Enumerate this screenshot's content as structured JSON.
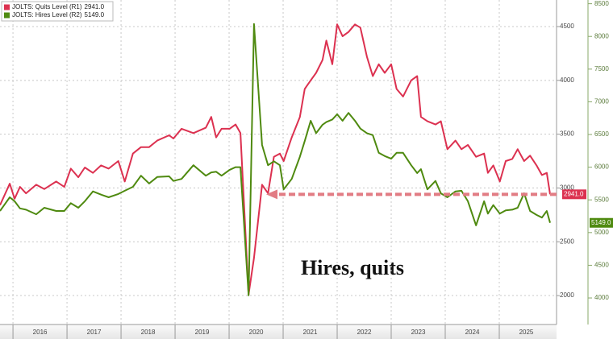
{
  "chart_data": {
    "type": "line",
    "annotation": "Hires, quits",
    "legend": "top-left",
    "grid": true,
    "x": [
      2015.76,
      2015.94,
      2016.03,
      2016.13,
      2016.24,
      2016.43,
      2016.58,
      2016.8,
      2016.95,
      2017.07,
      2017.21,
      2017.33,
      2017.48,
      2017.63,
      2017.77,
      2017.95,
      2018.07,
      2018.22,
      2018.37,
      2018.52,
      2018.67,
      2018.89,
      2018.97,
      2019.12,
      2019.34,
      2019.57,
      2019.67,
      2019.76,
      2019.86,
      2020.01,
      2020.12,
      2020.21,
      2020.36,
      2020.46,
      2020.61,
      2020.72,
      2020.83,
      2020.94,
      2021.01,
      2021.16,
      2021.31,
      2021.4,
      2021.51,
      2021.61,
      2021.73,
      2021.8,
      2021.91,
      2022.0,
      2022.1,
      2022.21,
      2022.33,
      2022.43,
      2022.55,
      2022.66,
      2022.77,
      2022.88,
      2023.0,
      2023.1,
      2023.22,
      2023.37,
      2023.48,
      2023.55,
      2023.67,
      2023.82,
      2023.92,
      2024.04,
      2024.19,
      2024.3,
      2024.42,
      2024.57,
      2024.72,
      2024.79,
      2024.89,
      2025.01,
      2025.12,
      2025.24,
      2025.34,
      2025.46,
      2025.57,
      2025.69,
      2025.79,
      2025.88,
      2025.94
    ],
    "series": [
      {
        "name": "JOLTS: Quits Level (R1)",
        "last_value_label": "2941.0",
        "color": "#dc3150",
        "axis": "y",
        "values": [
          2840,
          3040,
          2900,
          3010,
          2950,
          3030,
          2990,
          3060,
          3010,
          3180,
          3100,
          3190,
          3140,
          3210,
          3180,
          3250,
          3060,
          3320,
          3380,
          3380,
          3440,
          3490,
          3460,
          3550,
          3510,
          3560,
          3660,
          3470,
          3550,
          3550,
          3590,
          3510,
          2010,
          2350,
          3030,
          2950,
          3290,
          3320,
          3250,
          3470,
          3660,
          3920,
          4000,
          4070,
          4190,
          4370,
          4150,
          4520,
          4410,
          4450,
          4520,
          4490,
          4220,
          4040,
          4150,
          4070,
          4150,
          3920,
          3850,
          4000,
          4040,
          3660,
          3620,
          3590,
          3620,
          3360,
          3440,
          3360,
          3400,
          3290,
          3320,
          3140,
          3210,
          3060,
          3250,
          3270,
          3360,
          3250,
          3300,
          3210,
          3120,
          3140,
          2941
        ]
      },
      {
        "name": "JOLTS: Hires Level (R2)",
        "last_value_label": "5149.0",
        "color": "#4f8a10",
        "axis": "y2",
        "values": [
          5330,
          5540,
          5480,
          5370,
          5350,
          5280,
          5380,
          5330,
          5330,
          5450,
          5380,
          5480,
          5630,
          5580,
          5540,
          5590,
          5640,
          5700,
          5870,
          5750,
          5850,
          5860,
          5790,
          5820,
          6030,
          5870,
          5920,
          5930,
          5870,
          5960,
          6000,
          6000,
          4040,
          8190,
          6340,
          6030,
          6090,
          6030,
          5660,
          5820,
          6160,
          6400,
          6710,
          6520,
          6650,
          6690,
          6730,
          6810,
          6710,
          6830,
          6710,
          6590,
          6520,
          6490,
          6220,
          6170,
          6130,
          6220,
          6220,
          6030,
          5910,
          5970,
          5660,
          5790,
          5600,
          5540,
          5630,
          5640,
          5480,
          5110,
          5480,
          5290,
          5420,
          5290,
          5340,
          5350,
          5380,
          5600,
          5330,
          5270,
          5230,
          5330,
          5149
        ]
      }
    ],
    "xlim": [
      2015.76,
      2026.06
    ],
    "xticks": [
      {
        "value": 2016,
        "label": "2016"
      },
      {
        "value": 2017,
        "label": "2017"
      },
      {
        "value": 2018,
        "label": "2018"
      },
      {
        "value": 2019,
        "label": "2019"
      },
      {
        "value": 2020,
        "label": "2020"
      },
      {
        "value": 2021,
        "label": "2021"
      },
      {
        "value": 2022,
        "label": "2022"
      },
      {
        "value": 2023,
        "label": "2023"
      },
      {
        "value": 2024,
        "label": "2024"
      },
      {
        "value": 2025,
        "label": "2025"
      }
    ],
    "ylim": [
      1731,
      4747
    ],
    "yticks": [
      2000,
      2500,
      3000,
      3500,
      4000,
      4500
    ],
    "y2lim": [
      3594,
      8557
    ],
    "y2ticks": [
      4000,
      4500,
      5000,
      5500,
      6000,
      6500,
      7000,
      7500,
      8000,
      8500
    ]
  }
}
